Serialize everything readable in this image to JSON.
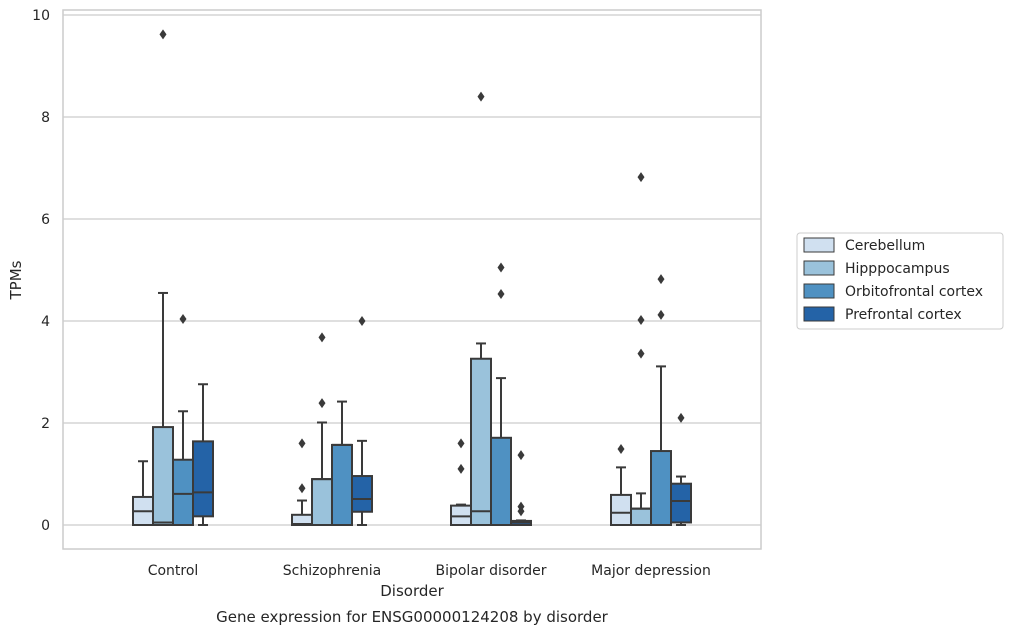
{
  "chart_data": {
    "type": "box",
    "xlabel": "Disorder",
    "ylabel": "TPMs",
    "caption": "Gene expression for ENSG00000124208 by disorder",
    "ylim": [
      -0.45,
      10.1
    ],
    "yticks": [
      0,
      2,
      4,
      6,
      8,
      10
    ],
    "grid": "horizontal",
    "legend_position": "right",
    "categories": [
      "Control",
      "Schizophrenia",
      "Bipolar disorder",
      "Major depression"
    ],
    "series": [
      {
        "name": "Cerebellum",
        "color": "#d0e0f0",
        "boxes": [
          {
            "whislo": 0,
            "q1": 0,
            "med": 0.27,
            "q3": 0.55,
            "whishi": 1.25,
            "fliers": []
          },
          {
            "whislo": 0,
            "q1": 0,
            "med": 0.02,
            "q3": 0.2,
            "whishi": 0.48,
            "fliers": [
              0.72,
              1.6
            ]
          },
          {
            "whislo": 0,
            "q1": 0,
            "med": 0.17,
            "q3": 0.38,
            "whishi": 0.4,
            "fliers": [
              1.1,
              1.6
            ]
          },
          {
            "whislo": 0,
            "q1": 0,
            "med": 0.24,
            "q3": 0.59,
            "whishi": 1.13,
            "fliers": [
              1.49
            ]
          }
        ]
      },
      {
        "name": "Hipppocampus",
        "color": "#9ac2db",
        "boxes": [
          {
            "whislo": 0,
            "q1": 0,
            "med": 0.05,
            "q3": 1.92,
            "whishi": 4.55,
            "fliers": [
              9.62
            ]
          },
          {
            "whislo": 0,
            "q1": 0,
            "med": 0.9,
            "q3": 0.9,
            "whishi": 2.01,
            "fliers": [
              2.39,
              3.68
            ]
          },
          {
            "whislo": 0,
            "q1": 0,
            "med": 0.27,
            "q3": 3.26,
            "whishi": 3.56,
            "fliers": [
              8.4
            ]
          },
          {
            "whislo": 0,
            "q1": 0,
            "med": 0.32,
            "q3": 0.32,
            "whishi": 0.62,
            "fliers": [
              3.36,
              4.02,
              6.82
            ]
          }
        ]
      },
      {
        "name": "Orbitofrontal cortex",
        "color": "#4f91c2",
        "boxes": [
          {
            "whislo": 0,
            "q1": 0,
            "med": 0.61,
            "q3": 1.28,
            "whishi": 2.23,
            "fliers": [
              4.04
            ]
          },
          {
            "whislo": 0,
            "q1": 0,
            "med": 1.57,
            "q3": 1.57,
            "whishi": 2.42,
            "fliers": []
          },
          {
            "whislo": 0,
            "q1": 0,
            "med": 0,
            "q3": 1.71,
            "whishi": 2.88,
            "fliers": [
              4.53,
              5.05
            ]
          },
          {
            "whislo": 0,
            "q1": 0,
            "med": 0,
            "q3": 1.45,
            "whishi": 3.11,
            "fliers": [
              4.12,
              4.82
            ]
          }
        ]
      },
      {
        "name": "Prefrontal cortex",
        "color": "#2463a7",
        "boxes": [
          {
            "whislo": 0,
            "q1": 0.17,
            "med": 0.64,
            "q3": 1.64,
            "whishi": 2.76,
            "fliers": []
          },
          {
            "whislo": 0,
            "q1": 0.26,
            "med": 0.51,
            "q3": 0.96,
            "whishi": 1.65,
            "fliers": [
              4
            ]
          },
          {
            "whislo": 0,
            "q1": 0,
            "med": 0.05,
            "q3": 0.08,
            "whishi": 0.09,
            "fliers": [
              0.27,
              0.36,
              1.37
            ]
          },
          {
            "whislo": 0,
            "q1": 0.05,
            "med": 0.47,
            "q3": 0.81,
            "whishi": 0.95,
            "fliers": [
              2.1
            ]
          }
        ]
      }
    ]
  }
}
